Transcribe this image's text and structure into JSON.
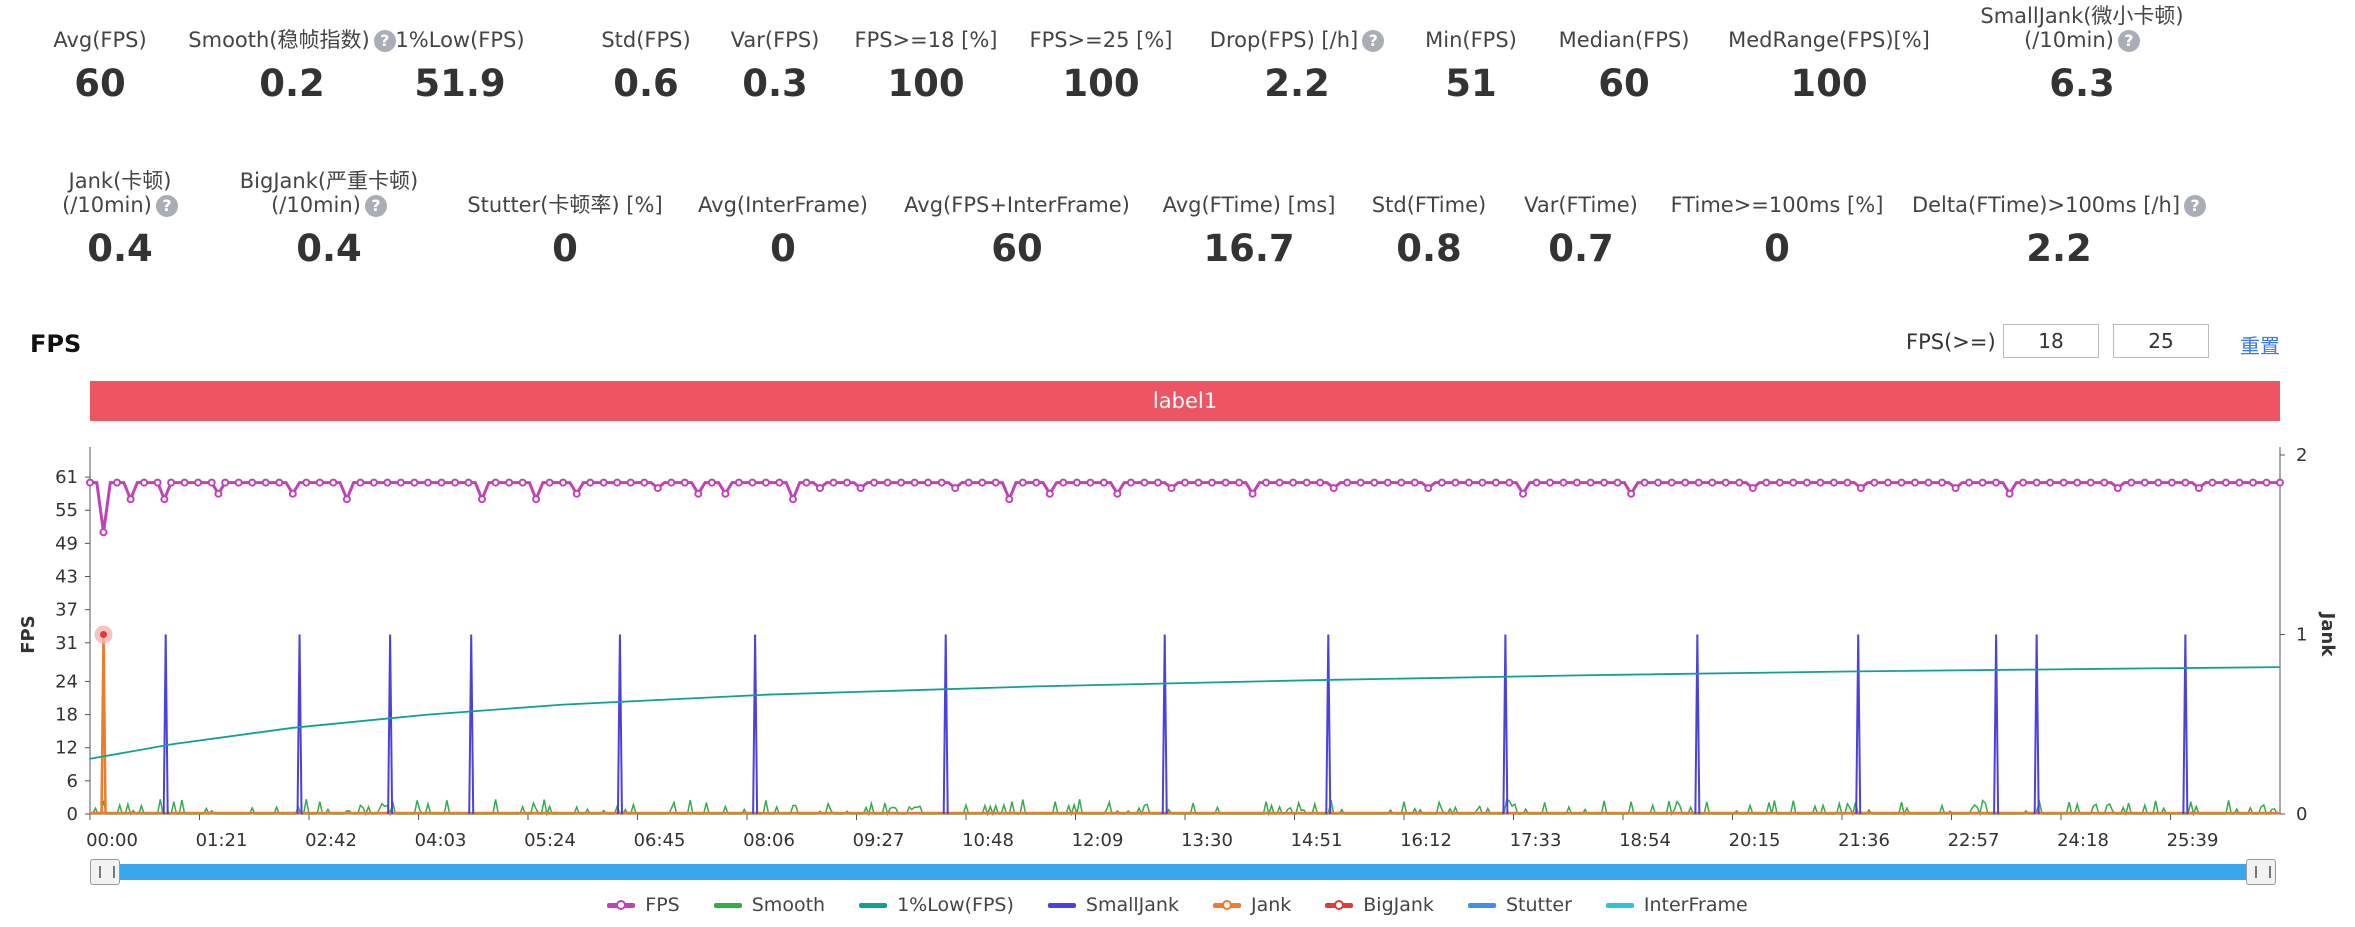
{
  "metrics_row1": [
    {
      "label": "Avg(FPS)",
      "value": "60",
      "help": false
    },
    {
      "label": "Smooth(稳帧指数)",
      "value": "0.2",
      "help": true
    },
    {
      "label": "1%Low(FPS)",
      "value": "51.9",
      "help": false
    },
    {
      "label": "Std(FPS)",
      "value": "0.6",
      "help": false
    },
    {
      "label": "Var(FPS)",
      "value": "0.3",
      "help": false
    },
    {
      "label": "FPS>=18 [%]",
      "value": "100",
      "help": false
    },
    {
      "label": "FPS>=25 [%]",
      "value": "100",
      "help": false
    },
    {
      "label": "Drop(FPS) [/h]",
      "value": "2.2",
      "help": true
    },
    {
      "label": "Min(FPS)",
      "value": "51",
      "help": false
    },
    {
      "label": "Median(FPS)",
      "value": "60",
      "help": false
    },
    {
      "label": "MedRange(FPS)[%]",
      "value": "100",
      "help": false
    },
    {
      "label": "SmallJank(微小卡顿)",
      "label2": "(/10min)",
      "value": "6.3",
      "help": true
    }
  ],
  "metrics_row2": [
    {
      "label": "Jank(卡顿)",
      "label2": "(/10min)",
      "value": "0.4",
      "help": true
    },
    {
      "label": "BigJank(严重卡顿)",
      "label2": "(/10min)",
      "value": "0.4",
      "help": true
    },
    {
      "label": "Stutter(卡顿率) [%]",
      "value": "0",
      "help": false
    },
    {
      "label": "Avg(InterFrame)",
      "value": "0",
      "help": false
    },
    {
      "label": "Avg(FPS+InterFrame)",
      "value": "60",
      "help": false
    },
    {
      "label": "Avg(FTime) [ms]",
      "value": "16.7",
      "help": false
    },
    {
      "label": "Std(FTime)",
      "value": "0.8",
      "help": false
    },
    {
      "label": "Var(FTime)",
      "value": "0.7",
      "help": false
    },
    {
      "label": "FTime>=100ms [%]",
      "value": "0",
      "help": false
    },
    {
      "label": "Delta(FTime)>100ms [/h]",
      "value": "2.2",
      "help": true
    }
  ],
  "section": {
    "title": "FPS",
    "threshold_label": "FPS(>=)",
    "threshold1": "18",
    "threshold2": "25",
    "reset_label": "重置",
    "band_label": "label1"
  },
  "help_glyph": "?",
  "chart_data": {
    "type": "line",
    "title": "",
    "ylabel": "FPS",
    "y2label": "Jank",
    "ylim": [
      0,
      65
    ],
    "y2lim": [
      0,
      2
    ],
    "y_ticks": [
      0,
      6,
      12,
      18,
      24,
      31,
      37,
      43,
      49,
      55,
      61
    ],
    "y2_ticks": [
      0,
      1,
      2
    ],
    "x_range_seconds": [
      0,
      1620
    ],
    "x_ticks": [
      "00:00",
      "01:21",
      "02:42",
      "04:03",
      "05:24",
      "06:45",
      "08:06",
      "09:27",
      "10:48",
      "12:09",
      "13:30",
      "14:51",
      "16:12",
      "17:33",
      "18:54",
      "20:15",
      "21:36",
      "22:57",
      "24:18",
      "25:39"
    ],
    "fps_baseline": 60,
    "fps_dips": [
      [
        10,
        51
      ],
      [
        30,
        57
      ],
      [
        55,
        57
      ],
      [
        95,
        58
      ],
      [
        150,
        58
      ],
      [
        190,
        57
      ],
      [
        290,
        57
      ],
      [
        330,
        57
      ],
      [
        360,
        58
      ],
      [
        420,
        59
      ],
      [
        450,
        58
      ],
      [
        470,
        58
      ],
      [
        520,
        57
      ],
      [
        540,
        59
      ],
      [
        570,
        59
      ],
      [
        640,
        59
      ],
      [
        680,
        57
      ],
      [
        710,
        58
      ],
      [
        760,
        58
      ],
      [
        800,
        59
      ],
      [
        860,
        58
      ],
      [
        920,
        59
      ],
      [
        990,
        59
      ],
      [
        1060,
        58
      ],
      [
        1140,
        58
      ],
      [
        1230,
        59
      ],
      [
        1310,
        59
      ],
      [
        1380,
        59
      ],
      [
        1420,
        58
      ],
      [
        1500,
        59
      ],
      [
        1560,
        59
      ]
    ],
    "small_jank_times": [
      56,
      155,
      222,
      282,
      392,
      492,
      633,
      795,
      916,
      1047,
      1189,
      1308,
      1410,
      1440,
      1550
    ],
    "jank_times": [
      10
    ],
    "low1_curve": [
      [
        0,
        10
      ],
      [
        60,
        12.6
      ],
      [
        150,
        15.6
      ],
      [
        250,
        18
      ],
      [
        350,
        19.8
      ],
      [
        500,
        21.6
      ],
      [
        700,
        23.1
      ],
      [
        900,
        24.2
      ],
      [
        1100,
        25.1
      ],
      [
        1300,
        25.8
      ],
      [
        1500,
        26.3
      ],
      [
        1620,
        26.6
      ]
    ],
    "legend": [
      {
        "name": "FPS",
        "color": "#c042b7",
        "marker": true
      },
      {
        "name": "Smooth",
        "color": "#2fae4b",
        "marker": false
      },
      {
        "name": "1%Low(FPS)",
        "color": "#11a096",
        "marker": false
      },
      {
        "name": "SmallJank",
        "color": "#4a41e0",
        "marker": false
      },
      {
        "name": "Jank",
        "color": "#f07a2a",
        "marker": true
      },
      {
        "name": "BigJank",
        "color": "#e03a3a",
        "marker": true
      },
      {
        "name": "Stutter",
        "color": "#3f8fe8",
        "marker": false
      },
      {
        "name": "InterFrame",
        "color": "#2dc3d6",
        "marker": false
      }
    ]
  }
}
